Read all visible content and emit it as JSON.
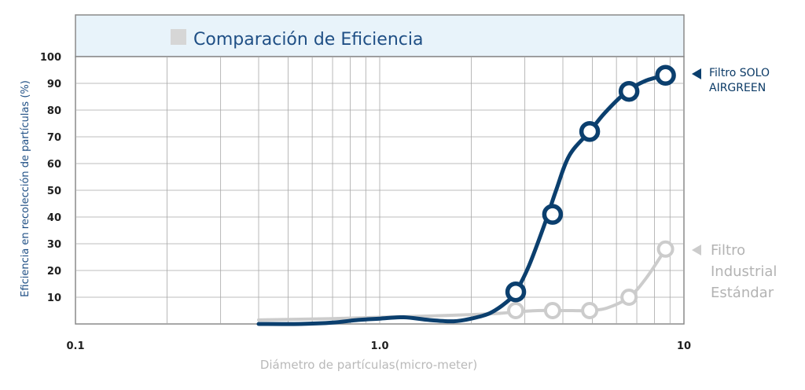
{
  "chart_data": {
    "type": "line",
    "title": "Comparación de Eficiencia",
    "xlabel": "Diámetro de partículas(micro-meter)",
    "ylabel": "Eficiencia en recolección de partículas (%)",
    "xscale": "log",
    "xlim": [
      0.1,
      10
    ],
    "ylim": [
      0,
      100
    ],
    "x_tick_labels": [
      "0.1",
      "1.0",
      "10"
    ],
    "y_tick_labels": [
      "10",
      "20",
      "30",
      "40",
      "50",
      "60",
      "70",
      "80",
      "90",
      "100"
    ],
    "grid": true,
    "legend_position": "right",
    "series": [
      {
        "name": "Filtro SOLO AIRGREEN",
        "name_lines": [
          "Filtro SOLO",
          "AIRGREEN"
        ],
        "color": "#0b3f6e",
        "curve_x": [
          0.4,
          0.55,
          0.7,
          0.85,
          1.0,
          1.2,
          1.45,
          1.75,
          2.0,
          2.3,
          2.6,
          2.8,
          3.1,
          3.5,
          3.8,
          4.2,
          4.9,
          5.5,
          6.5,
          7.5,
          8.7
        ],
        "curve_y": [
          0,
          0,
          0.5,
          1.5,
          2,
          2.5,
          1.5,
          1,
          2,
          4,
          8,
          12,
          22,
          38,
          50,
          63,
          72,
          79,
          87,
          91,
          93
        ],
        "markers_x": [
          2.8,
          3.7,
          4.9,
          6.6,
          8.7
        ],
        "markers_y": [
          12,
          41,
          72,
          87,
          93
        ]
      },
      {
        "name": "Filtro Industrial Estándar",
        "name_lines": [
          "Filtro",
          "Industrial",
          "Estándar"
        ],
        "color": "#cccccc",
        "curve_x": [
          0.4,
          0.7,
          1.0,
          1.5,
          2.0,
          2.5,
          2.8,
          3.3,
          3.7,
          4.3,
          4.9,
          5.6,
          6.6,
          7.5,
          8.7
        ],
        "curve_y": [
          1.5,
          2,
          2.5,
          3,
          3.5,
          4,
          4.5,
          5,
          5,
          5,
          5,
          6,
          10,
          17,
          28
        ],
        "markers_x": [
          2.8,
          3.7,
          4.9,
          6.6,
          8.7
        ],
        "markers_y": [
          5,
          5,
          5,
          10,
          28
        ]
      }
    ]
  }
}
